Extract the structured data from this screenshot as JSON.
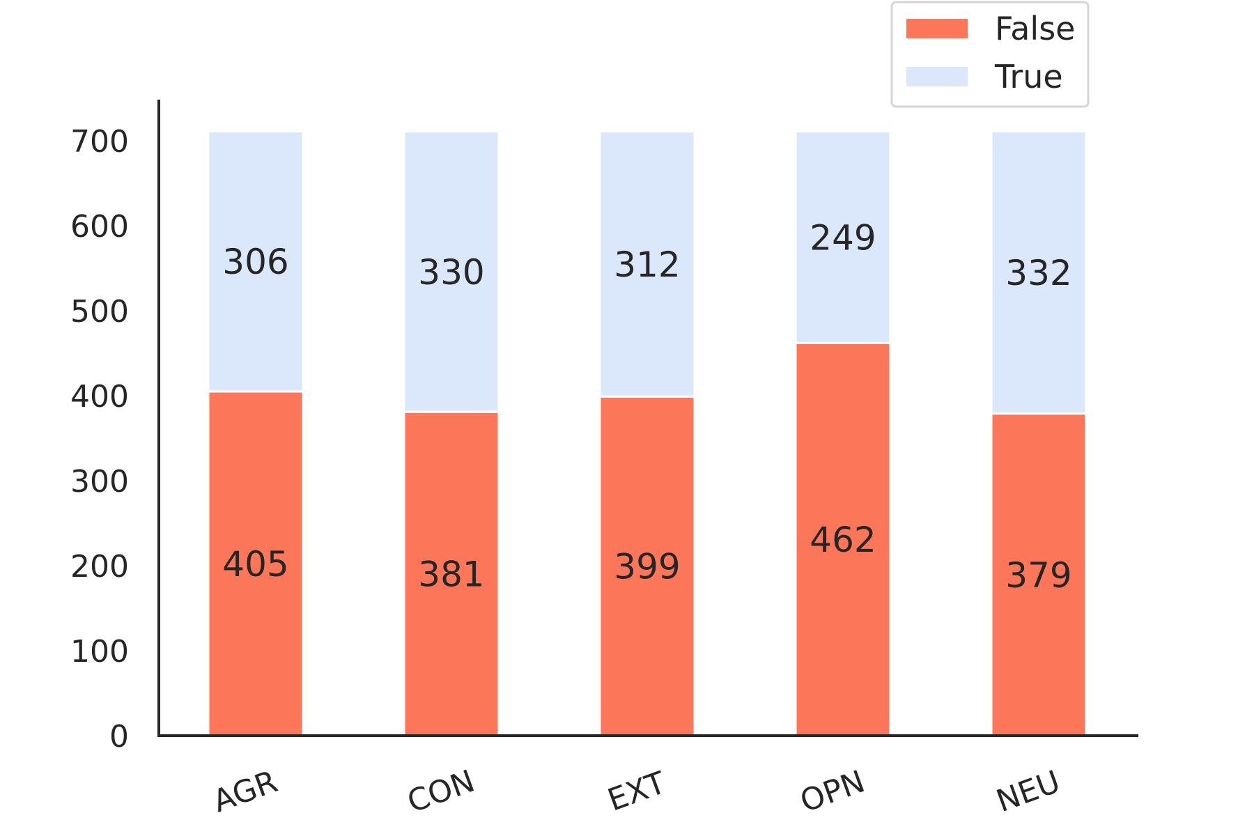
{
  "chart_data": {
    "type": "bar",
    "stacked": true,
    "categories": [
      "AGR",
      "CON",
      "EXT",
      "OPN",
      "NEU"
    ],
    "series": [
      {
        "name": "False",
        "values": [
          405,
          381,
          399,
          462,
          379
        ],
        "color": "#fc7759"
      },
      {
        "name": "True",
        "values": [
          306,
          330,
          312,
          249,
          332
        ],
        "color": "#dbe8fb"
      }
    ],
    "ylim": [
      0,
      750
    ],
    "yticks": [
      0,
      100,
      200,
      300,
      400,
      500,
      600,
      700
    ],
    "title": "",
    "xlabel": "",
    "ylabel": "",
    "legend": "top-right",
    "grid": false
  }
}
